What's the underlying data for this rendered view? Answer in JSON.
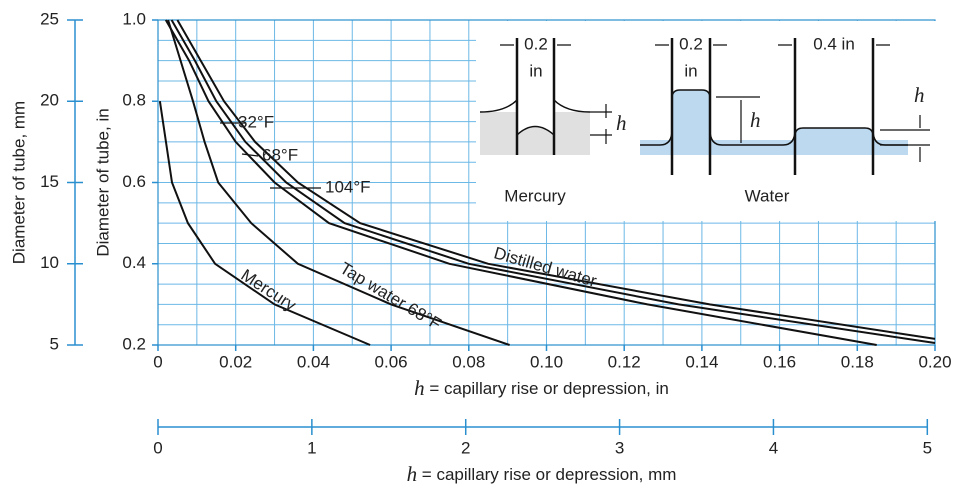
{
  "chart_data": {
    "type": "line",
    "ylabel": "Diameter of tube, in",
    "y2label": "Diameter of tube, mm",
    "xlabel_symbol": "h",
    "xlabel": " = capillary rise or depression, in",
    "x2label_symbol": "h",
    "x2label": " = capillary rise or depression, mm",
    "xlim": [
      0,
      0.2
    ],
    "xticks": [
      0,
      0.02,
      0.04,
      0.06,
      0.08,
      {
        "value": 0.1,
        "label": "0.10"
      },
      0.12,
      0.14,
      0.16,
      0.18,
      {
        "value": 0.2,
        "label": "0.20"
      }
    ],
    "ylim": [
      0.2,
      1.0
    ],
    "yticks": [
      0.2,
      0.4,
      0.6,
      0.8,
      {
        "value": 1,
        "label": "1.0"
      }
    ],
    "y2lim": [
      5,
      25
    ],
    "y2ticks": [
      5,
      10,
      15,
      20,
      25
    ],
    "x2lim": [
      0,
      5.05
    ],
    "x2ticks": [
      0,
      1,
      2,
      3,
      4,
      5
    ],
    "grid": true,
    "xgrid": [
      0.01,
      0.02,
      0.03,
      0.04,
      0.05,
      0.06,
      0.07,
      0.08,
      0.09,
      0.1,
      0.11,
      0.12,
      0.13,
      0.14,
      0.15,
      0.16,
      0.17,
      0.18,
      0.19
    ],
    "ygrid": [
      0.25,
      0.3,
      0.35,
      0.4,
      0.45,
      0.5,
      0.55,
      0.6,
      0.65,
      0.7,
      0.75,
      0.8,
      0.85,
      0.9,
      0.95
    ],
    "axis_color": "#2a8fcf",
    "grid_color": "#6cb8e6",
    "series": [
      {
        "name": "32°F",
        "color": "#111111",
        "x": [
          0.005,
          0.011,
          0.017,
          0.025,
          0.036,
          0.052,
          0.085,
          0.142,
          0.2
        ],
        "values": [
          1.0,
          0.9,
          0.8,
          0.7,
          0.6,
          0.5,
          0.4,
          0.3,
          0.215
        ]
      },
      {
        "name": "68°F",
        "color": "#111111",
        "x": [
          0.0035,
          0.0095,
          0.015,
          0.0225,
          0.033,
          0.048,
          0.08,
          0.134,
          0.2
        ],
        "values": [
          1.0,
          0.9,
          0.8,
          0.7,
          0.6,
          0.5,
          0.4,
          0.3,
          0.205
        ]
      },
      {
        "name": "104°F",
        "color": "#111111",
        "x": [
          0.002,
          0.008,
          0.013,
          0.02,
          0.03,
          0.044,
          0.075,
          0.126,
          0.185
        ],
        "values": [
          1.0,
          0.9,
          0.8,
          0.7,
          0.6,
          0.5,
          0.4,
          0.3,
          0.2
        ]
      },
      {
        "name": "Tap water 68°F",
        "color": "#111111",
        "x": [
          0.0026,
          0.009,
          0.012,
          0.0155,
          0.024,
          0.036,
          0.06,
          0.0905
        ],
        "values": [
          1.0,
          0.8,
          0.7,
          0.6,
          0.5,
          0.4,
          0.3,
          0.2
        ]
      },
      {
        "name": "Mercury",
        "color": "#111111",
        "x": [
          0.0005,
          0.0036,
          0.0077,
          0.0147,
          0.03,
          0.0546
        ],
        "values": [
          0.8,
          0.6,
          0.5,
          0.4,
          0.3,
          0.2
        ]
      }
    ],
    "annotation": "Distilled water",
    "inset_labels": [
      "0.2",
      "in",
      "h",
      "Mercury",
      "0.2",
      "in",
      "0.4 in",
      "h",
      "h",
      "Water"
    ]
  }
}
